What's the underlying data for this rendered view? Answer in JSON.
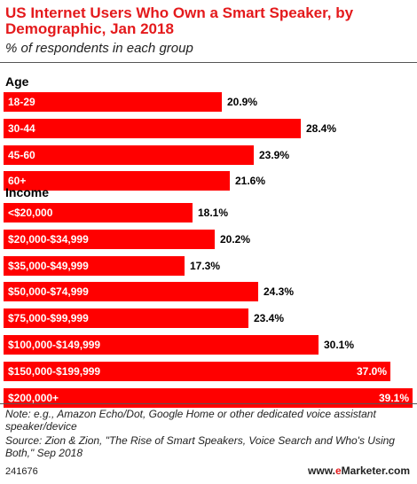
{
  "chart_data": {
    "type": "bar",
    "orientation": "horizontal",
    "title": "US Internet Users Who Own a Smart Speaker, by Demographic, Jan 2018",
    "subtitle": "% of respondents in each group",
    "value_suffix": "%",
    "xlim": [
      0,
      39.1
    ],
    "grid": false,
    "bar_color": "#ff0000",
    "groups": [
      {
        "label": "Age",
        "categories": [
          "18-29",
          "30-44",
          "45-60",
          "60+"
        ],
        "values": [
          20.9,
          28.4,
          23.9,
          21.6
        ],
        "value_labels": [
          "20.9%",
          "28.4%",
          "23.9%",
          "21.6%"
        ]
      },
      {
        "label": "Income",
        "categories": [
          "<$20,000",
          "$20,000-$34,999",
          "$35,000-$49,999",
          "$50,000-$74,999",
          "$75,000-$99,999",
          "$100,000-$149,999",
          "$150,000-$199,999",
          "$200,000+"
        ],
        "values": [
          18.1,
          20.2,
          17.3,
          24.3,
          23.4,
          30.1,
          37.0,
          39.1
        ],
        "value_labels": [
          "18.1%",
          "20.2%",
          "17.3%",
          "24.3%",
          "23.4%",
          "30.1%",
          "37.0%",
          "39.1%"
        ]
      }
    ]
  },
  "footer": {
    "note": "Note: e.g., Amazon Echo/Dot, Google Home or other dedicated voice assistant speaker/device",
    "source": "Source: Zion & Zion, \"The Rise of Smart Speakers, Voice Search and Who's Using Both,\" Sep 2018",
    "chart_id": "241676",
    "brand_prefix": "www.",
    "brand_e": "e",
    "brand_rest": "Marketer.com"
  },
  "colors": {
    "title": "#e41a1c",
    "bar": "#ff0000",
    "brand_accent": "#e41a1c"
  }
}
